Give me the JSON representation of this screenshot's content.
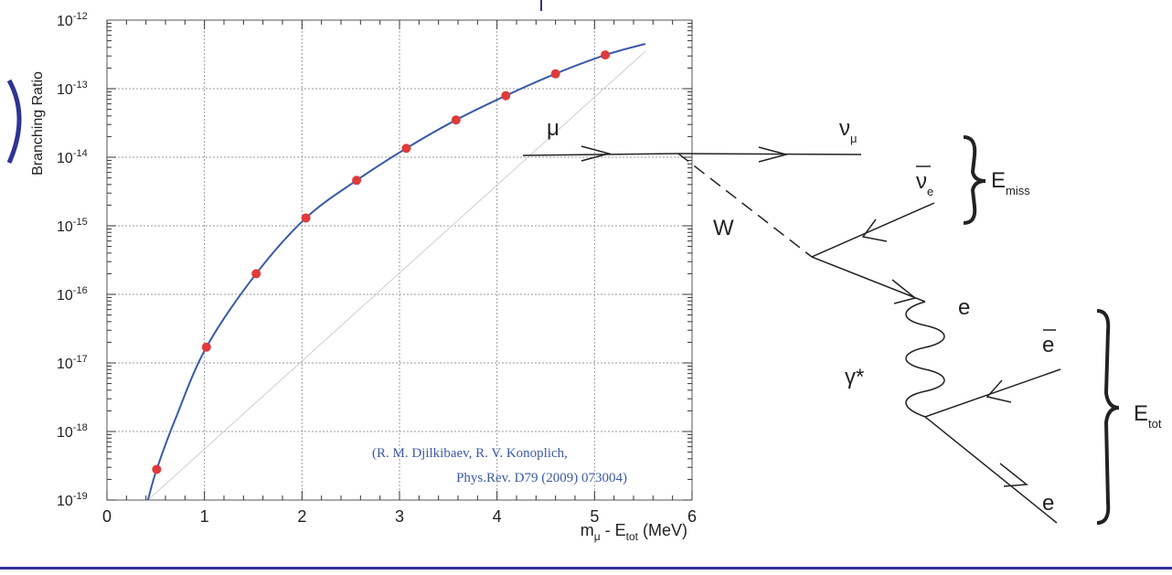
{
  "colors": {
    "curve": "#3a5aa8",
    "points": "#e03a3a",
    "citation": "#3a5aa8",
    "slide_accent": "#2f3393",
    "grid": "#9a9a9a",
    "diagram": "#222222"
  },
  "chart_data": {
    "type": "line",
    "ylabel": "Branching Ratio",
    "xlabel": {
      "main": "m",
      "sub1": "μ",
      "mid": " - E",
      "sub2": "tot",
      "unit": " (MeV)"
    },
    "xlim": [
      0,
      6
    ],
    "ylim": [
      1e-19,
      1e-12
    ],
    "yscale": "log",
    "grid": true,
    "x_ticks": [
      "0",
      "1",
      "2",
      "3",
      "4",
      "5",
      "6"
    ],
    "y_ticks": [
      {
        "base": "10",
        "exp": "-12"
      },
      {
        "base": "10",
        "exp": "-13"
      },
      {
        "base": "10",
        "exp": "-14"
      },
      {
        "base": "10",
        "exp": "-15"
      },
      {
        "base": "10",
        "exp": "-16"
      },
      {
        "base": "10",
        "exp": "-17"
      },
      {
        "base": "10",
        "exp": "-18"
      },
      {
        "base": "10",
        "exp": "-19"
      }
    ],
    "annotation": [
      "(R. M. Djilkibaev, R. V. Konoplich,",
      "Phys.Rev. D79 (2009) 073004)"
    ],
    "series": [
      {
        "values_kind": "points",
        "points": [
          [
            0.51,
            2.8e-19
          ],
          [
            1.02,
            1.7e-17
          ],
          [
            1.53,
            2e-16
          ],
          [
            2.04,
            1.3e-15
          ],
          [
            2.56,
            4.6e-15
          ],
          [
            3.07,
            1.35e-14
          ],
          [
            3.58,
            3.5e-14
          ],
          [
            4.09,
            7.9e-14
          ],
          [
            4.6,
            1.65e-13
          ],
          [
            5.11,
            3.1e-13
          ]
        ]
      },
      {
        "values_kind": "curve",
        "points": [
          [
            0.42,
            1e-19
          ],
          [
            0.51,
            2.8e-19
          ],
          [
            0.7,
            1.5e-18
          ],
          [
            1.02,
            1.7e-17
          ],
          [
            1.53,
            2e-16
          ],
          [
            2.04,
            1.3e-15
          ],
          [
            2.56,
            4.6e-15
          ],
          [
            3.07,
            1.35e-14
          ],
          [
            3.58,
            3.5e-14
          ],
          [
            4.09,
            7.9e-14
          ],
          [
            4.6,
            1.65e-13
          ],
          [
            5.11,
            3.1e-13
          ],
          [
            5.52,
            4.5e-13
          ]
        ]
      },
      {
        "values_kind": "reference-line",
        "points": [
          [
            0.42,
            1e-19
          ],
          [
            5.52,
            3.5e-13
          ]
        ]
      }
    ]
  },
  "diagram": {
    "mu": "μ",
    "nu_mu": {
      "main": "ν",
      "sub": "μ"
    },
    "nubar_e": {
      "main": "ν",
      "sub": "e"
    },
    "E_miss": {
      "main": "E",
      "sub": "miss"
    },
    "W": "W",
    "e_top": "e",
    "ebar": "e",
    "gamma_star": "γ*",
    "e_bottom": "e",
    "E_tot": {
      "main": "E",
      "sub": "tot"
    }
  }
}
